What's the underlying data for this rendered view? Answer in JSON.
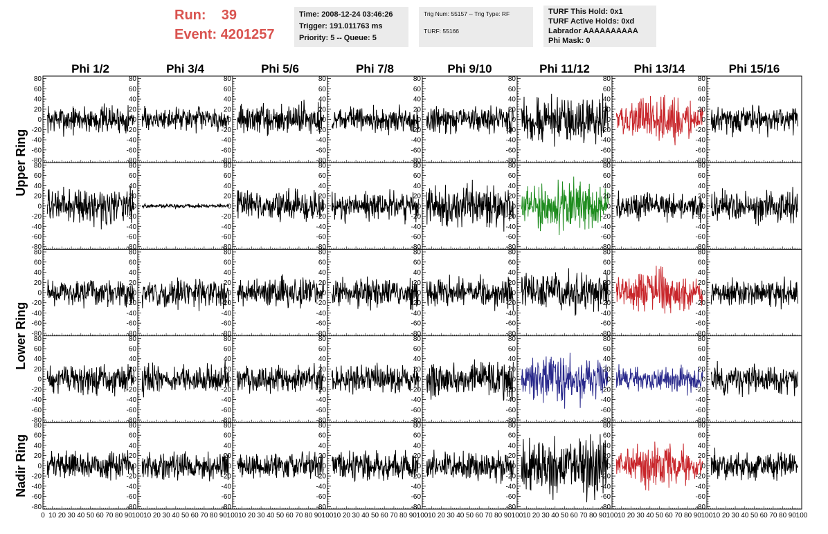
{
  "header": {
    "run_label": "Run:",
    "run_value": "39",
    "event_label": "Event:",
    "event_value": "4201257"
  },
  "info_box_1": {
    "time": "Time: 2008-12-24 03:46:26",
    "trigger": "Trigger: 191.011763 ms",
    "priority": "Priority: 5 -- Queue: 5"
  },
  "info_box_2": {
    "trig": "Trig Num: 55157 -- Trig Type: RF",
    "turf": "TURF: 55166"
  },
  "info_box_3": {
    "this_hold": "TURF This Hold: 0x1",
    "active_holds": "TURF Active Holds: 0xd",
    "labrador": "Labrador AAAAAAAAAA",
    "phi_mask": "Phi Mask: 0"
  },
  "chart_data": {
    "type": "line",
    "columns": [
      "Phi 1/2",
      "Phi 3/4",
      "Phi 5/6",
      "Phi 7/8",
      "Phi 9/10",
      "Phi 11/12",
      "Phi 13/14",
      "Phi 15/16"
    ],
    "ring_labels": [
      "Upper Ring",
      "Lower Ring",
      "Nadir Ring"
    ],
    "rows": 5,
    "ylim": [
      -85,
      85
    ],
    "yticks": [
      -80,
      -60,
      -40,
      -20,
      0,
      20,
      40,
      60,
      80
    ],
    "xlim": [
      0,
      100
    ],
    "xticks": [
      0,
      10,
      20,
      30,
      40,
      50,
      60,
      70,
      80,
      90,
      100
    ],
    "amplitudes": [
      [
        14,
        11,
        15,
        12,
        13,
        22,
        22,
        14
      ],
      [
        17,
        2,
        15,
        14,
        20,
        26,
        13,
        17
      ],
      [
        13,
        14,
        14,
        14,
        14,
        20,
        22,
        14
      ],
      [
        14,
        14,
        14,
        14,
        17,
        26,
        13,
        14
      ],
      [
        13,
        13,
        13,
        14,
        14,
        28,
        22,
        14
      ]
    ],
    "colors": [
      [
        "#000000",
        "#000000",
        "#000000",
        "#000000",
        "#000000",
        "#000000",
        "#c8262b",
        "#000000"
      ],
      [
        "#000000",
        "#000000",
        "#000000",
        "#000000",
        "#000000",
        "#1e8c1e",
        "#000000",
        "#000000"
      ],
      [
        "#000000",
        "#000000",
        "#000000",
        "#000000",
        "#000000",
        "#000000",
        "#c8262b",
        "#000000"
      ],
      [
        "#000000",
        "#000000",
        "#000000",
        "#000000",
        "#000000",
        "#2a2a8c",
        "#2a2a8c",
        "#000000"
      ],
      [
        "#000000",
        "#000000",
        "#000000",
        "#000000",
        "#000000",
        "#000000",
        "#c8262b",
        "#000000"
      ]
    ]
  }
}
